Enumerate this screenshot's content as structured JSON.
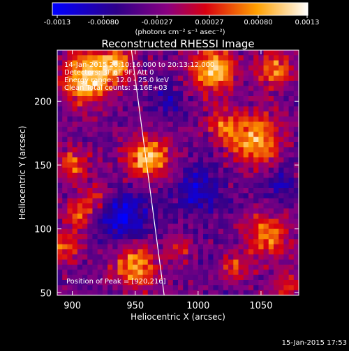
{
  "colorbar": {
    "tick_labels": [
      "-0.0013",
      "-0.00080",
      "-0.00027",
      "0.00027",
      "0.00080",
      "0.0013"
    ],
    "unit_label": "(photons cm⁻² s⁻¹ asec⁻²)",
    "min": -0.0013,
    "max": 0.0013
  },
  "annotations": {
    "time_range": "14-Jan-2015 20:10:16.000 to 20:13:12.000",
    "detectors": "Detectors: 3F 6F 9F, Att 0",
    "energy_range": "Energy range: 12.0 - 25.0 keV",
    "clean": "Clean     Total counts: 1.16E+03",
    "peak_position": "Position of Peak = [920,216]"
  },
  "footer": {
    "timestamp": "15-Jan-2015 17:53"
  },
  "chart_data": {
    "type": "heatmap",
    "title": "Reconstructed RHESSI Image",
    "xlabel": "Heliocentric X (arcsec)",
    "ylabel": "Heliocentric Y (arcsec)",
    "xlim": [
      888,
      1080
    ],
    "ylim": [
      48,
      240
    ],
    "x_ticks": [
      900,
      950,
      1000,
      1050
    ],
    "y_ticks": [
      50,
      100,
      150,
      200
    ],
    "grid_size": 48,
    "limb_line": [
      [
        947,
        240
      ],
      [
        973,
        48
      ]
    ],
    "blobs": [
      {
        "x": 912,
        "y": 218,
        "s": 14,
        "a": 1.0
      },
      {
        "x": 935,
        "y": 230,
        "s": 9,
        "a": 0.7
      },
      {
        "x": 1012,
        "y": 225,
        "s": 13,
        "a": 0.9
      },
      {
        "x": 1060,
        "y": 225,
        "s": 10,
        "a": 0.65
      },
      {
        "x": 960,
        "y": 155,
        "s": 12,
        "a": 0.9
      },
      {
        "x": 1045,
        "y": 170,
        "s": 14,
        "a": 0.85
      },
      {
        "x": 1020,
        "y": 180,
        "s": 8,
        "a": 0.55
      },
      {
        "x": 900,
        "y": 150,
        "s": 9,
        "a": 0.6
      },
      {
        "x": 905,
        "y": 110,
        "s": 9,
        "a": 0.6
      },
      {
        "x": 895,
        "y": 85,
        "s": 8,
        "a": 0.55
      },
      {
        "x": 920,
        "y": 125,
        "s": 8,
        "a": 0.45
      },
      {
        "x": 1055,
        "y": 95,
        "s": 12,
        "a": 0.7
      },
      {
        "x": 1030,
        "y": 70,
        "s": 8,
        "a": 0.5
      },
      {
        "x": 950,
        "y": 70,
        "s": 12,
        "a": 0.8
      },
      {
        "x": 985,
        "y": 85,
        "s": 7,
        "a": 0.45
      },
      {
        "x": 1070,
        "y": 55,
        "s": 8,
        "a": 0.5
      }
    ],
    "neg_blobs": [
      {
        "x": 940,
        "y": 110,
        "s": 14,
        "a": 0.6
      },
      {
        "x": 1000,
        "y": 130,
        "s": 14,
        "a": 0.45
      },
      {
        "x": 1065,
        "y": 135,
        "s": 9,
        "a": 0.35
      },
      {
        "x": 975,
        "y": 200,
        "s": 10,
        "a": 0.3
      }
    ]
  }
}
